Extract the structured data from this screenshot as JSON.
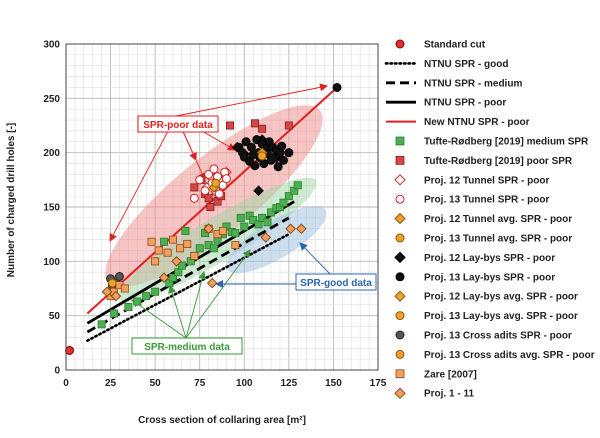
{
  "chart_data": {
    "type": "scatter",
    "xlabel": "Cross section of collaring area [m²]",
    "ylabel": "Number of charged drill holes [-]",
    "xlim": [
      0,
      175
    ],
    "ylim": [
      0,
      300
    ],
    "xticks": [
      "0",
      "25",
      "50",
      "75",
      "100",
      "125",
      "150",
      "175"
    ],
    "yticks": [
      "0",
      "50",
      "100",
      "150",
      "200",
      "250",
      "300"
    ],
    "grid": true,
    "legend_position": "right",
    "ellipses": [
      {
        "name": "SPR-poor data",
        "cx": 83,
        "cy": 160,
        "rx": 95,
        "ry": 27,
        "angle_deg": -39,
        "color": "#f08a8a"
      },
      {
        "name": "SPR-medium data",
        "cx": 85,
        "cy": 120,
        "rx": 80,
        "ry": 15,
        "angle_deg": -31,
        "color": "#9fd6a6"
      },
      {
        "name": "SPR-good data",
        "cx": 118,
        "cy": 120,
        "rx": 40,
        "ry": 13,
        "angle_deg": -31,
        "color": "#9cbde0"
      }
    ],
    "lines": [
      {
        "name": "NTNU SPR - good",
        "style": "dotted",
        "color": "#000000",
        "x": [
          12,
          125
        ],
        "y": [
          27,
          125
        ]
      },
      {
        "name": "NTNU SPR - medium",
        "style": "dashed",
        "color": "#000000",
        "x": [
          12,
          125
        ],
        "y": [
          35,
          140
        ]
      },
      {
        "name": "NTNU SPR - poor",
        "style": "solid",
        "color": "#000000",
        "x": [
          12,
          128
        ],
        "y": [
          43,
          155
        ]
      },
      {
        "name": "New NTNU SPR - poor",
        "style": "solid",
        "color": "#e02020",
        "x": [
          12,
          152
        ],
        "y": [
          52,
          260
        ]
      }
    ],
    "series": [
      {
        "name": "Standard cut",
        "marker": "circle",
        "fill": "#e03030",
        "stroke": "#7a0000",
        "x": [
          2
        ],
        "y": [
          18
        ]
      },
      {
        "name": "Tufte-Rødberg [2019] medium SPR",
        "marker": "square",
        "fill": "#4caf50",
        "stroke": "#2e7d32",
        "x": [
          20,
          27,
          35,
          40,
          45,
          50,
          55,
          58,
          60,
          63,
          65,
          67,
          70,
          72,
          75,
          78,
          80,
          83,
          85,
          88,
          90,
          93,
          95,
          98,
          100,
          103,
          105,
          108,
          110,
          113,
          115,
          118,
          120,
          122,
          125,
          128,
          130
        ],
        "y": [
          42,
          52,
          58,
          63,
          68,
          72,
          118,
          80,
          85,
          90,
          96,
          128,
          100,
          105,
          112,
          126,
          115,
          112,
          120,
          125,
          132,
          127,
          126,
          140,
          132,
          142,
          138,
          134,
          140,
          136,
          145,
          149,
          150,
          154,
          160,
          165,
          170
        ]
      },
      {
        "name": "Tufte-Rødberg [2019] poor SPR",
        "marker": "square",
        "fill": "#d24848",
        "stroke": "#8e1b1b",
        "x": [
          72,
          76,
          78,
          80,
          81,
          82,
          84,
          85,
          86,
          87,
          88,
          92,
          106,
          110,
          125
        ],
        "y": [
          168,
          175,
          162,
          158,
          150,
          180,
          165,
          155,
          170,
          160,
          177,
          225,
          227,
          222,
          225
        ]
      },
      {
        "name": "Proj. 12 Tunnel SPR - poor",
        "marker": "diamond",
        "fill": "#ffffff",
        "stroke": "#d02020",
        "x": [
          79,
          81,
          84,
          86,
          88,
          90
        ],
        "y": [
          168,
          178,
          164,
          175,
          170,
          182
        ]
      },
      {
        "name": "Proj. 13 Tunnel SPR - poor",
        "marker": "circle",
        "fill": "#ffffff",
        "stroke": "#d02020",
        "x": [
          72,
          75,
          78,
          80,
          82,
          83,
          84,
          85,
          86,
          88,
          89,
          90
        ],
        "y": [
          158,
          175,
          165,
          180,
          172,
          185,
          168,
          178,
          162,
          170,
          182,
          176
        ]
      },
      {
        "name": "Proj. 12 Tunnel avg. SPR - poor",
        "marker": "diamond",
        "fill": "#f0a030",
        "stroke": "#8a5a00",
        "x": [
          83
        ],
        "y": [
          168
        ]
      },
      {
        "name": "Proj. 13 Tunnel avg. SPR - poor",
        "marker": "circle",
        "fill": "#f0a030",
        "stroke": "#8a5a00",
        "x": [
          84
        ],
        "y": [
          172
        ]
      },
      {
        "name": "Proj. 12 Lay-bys SPR - poor",
        "marker": "diamond",
        "fill": "#111111",
        "stroke": "#000000",
        "x": [
          96,
          100,
          110,
          118,
          108
        ],
        "y": [
          205,
          199,
          212,
          195,
          165
        ]
      },
      {
        "name": "Proj. 13 Lay-bys SPR - poor",
        "marker": "circle",
        "fill": "#111111",
        "stroke": "#000000",
        "x": [
          97,
          99,
          100,
          101,
          103,
          104,
          105,
          106,
          107,
          108,
          109,
          110,
          111,
          112,
          113,
          114,
          115,
          116,
          117,
          118,
          119,
          120,
          121,
          122,
          125,
          152
        ],
        "y": [
          205,
          200,
          196,
          210,
          192,
          205,
          198,
          188,
          212,
          200,
          195,
          208,
          190,
          204,
          199,
          210,
          193,
          205,
          196,
          202,
          187,
          200,
          206,
          193,
          200,
          260
        ]
      },
      {
        "name": "Proj. 12 Lay-bys avg. SPR - poor",
        "marker": "diamond",
        "fill": "#f0a030",
        "stroke": "#8a5a00",
        "x": [
          110
        ],
        "y": [
          200
        ]
      },
      {
        "name": "Proj. 13 Lay-bys avg. SPR - poor",
        "marker": "circle",
        "fill": "#f0a030",
        "stroke": "#8a5a00",
        "x": [
          110
        ],
        "y": [
          197
        ]
      },
      {
        "name": "Proj. 13 Cross adits SPR - poor",
        "marker": "circle",
        "fill": "#555555",
        "stroke": "#222222",
        "x": [
          25,
          26,
          28,
          30
        ],
        "y": [
          84,
          78,
          80,
          86
        ]
      },
      {
        "name": "Proj. 13 Cross adits avg. SPR - poor",
        "marker": "circle",
        "fill": "#f0a030",
        "stroke": "#8a5a00",
        "x": [
          26
        ],
        "y": [
          80
        ]
      },
      {
        "name": "Zare [2007]",
        "marker": "square",
        "fill": "#f0a060",
        "stroke": "#8a4a10",
        "x": [
          25,
          27,
          30,
          33,
          48,
          50,
          52,
          57,
          60,
          64,
          68,
          72,
          80,
          85,
          88,
          95
        ],
        "y": [
          68,
          72,
          78,
          75,
          118,
          100,
          110,
          108,
          120,
          112,
          116,
          105,
          130,
          125,
          128,
          115
        ]
      },
      {
        "name": "Proj. 1 - 11",
        "marker": "diamond",
        "fill": "#f0a060",
        "stroke": "#8a4a10",
        "x": [
          23,
          28,
          55,
          62,
          80,
          82,
          112,
          126,
          132
        ],
        "y": [
          72,
          68,
          85,
          100,
          130,
          80,
          122,
          130,
          130
        ]
      }
    ],
    "annotations": [
      {
        "text": "SPR-poor data",
        "color": "#e02020"
      },
      {
        "text": "SPR-medium data",
        "color": "#3a9a3a"
      },
      {
        "text": "SPR-good data",
        "color": "#2c66b0"
      }
    ]
  },
  "legend": [
    {
      "label": "Standard cut",
      "kind": "marker",
      "series": 0
    },
    {
      "label": "NTNU SPR - good",
      "kind": "line",
      "line": 0
    },
    {
      "label": "NTNU SPR - medium",
      "kind": "line",
      "line": 1
    },
    {
      "label": "NTNU SPR - poor",
      "kind": "line",
      "line": 2
    },
    {
      "label": "New NTNU SPR - poor",
      "kind": "line",
      "line": 3
    },
    {
      "label": "Tufte-Rødberg [2019] medium SPR",
      "kind": "marker",
      "series": 1
    },
    {
      "label": "Tufte-Rødberg [2019] poor SPR",
      "kind": "marker",
      "series": 2
    },
    {
      "label": "Proj. 12 Tunnel SPR - poor",
      "kind": "marker",
      "series": 3
    },
    {
      "label": "Proj. 13 Tunnel SPR - poor",
      "kind": "marker",
      "series": 4
    },
    {
      "label": "Proj. 12 Tunnel avg. SPR - poor",
      "kind": "marker",
      "series": 5
    },
    {
      "label": "Proj. 13 Tunnel avg. SPR - poor",
      "kind": "marker",
      "series": 6
    },
    {
      "label": "Proj. 12 Lay-bys SPR - poor",
      "kind": "marker",
      "series": 7
    },
    {
      "label": "Proj. 13 Lay-bys SPR - poor",
      "kind": "marker",
      "series": 8
    },
    {
      "label": "Proj. 12 Lay-bys avg. SPR - poor",
      "kind": "marker",
      "series": 9
    },
    {
      "label": "Proj. 13 Lay-bys avg. SPR - poor",
      "kind": "marker",
      "series": 10
    },
    {
      "label": "Proj. 13 Cross adits SPR - poor",
      "kind": "marker",
      "series": 11
    },
    {
      "label": "Proj. 13 Cross adits avg. SPR - poor",
      "kind": "marker",
      "series": 12
    },
    {
      "label": "Zare [2007]",
      "kind": "marker",
      "series": 13
    },
    {
      "label": "Proj. 1 - 11",
      "kind": "marker",
      "series": 14
    }
  ]
}
